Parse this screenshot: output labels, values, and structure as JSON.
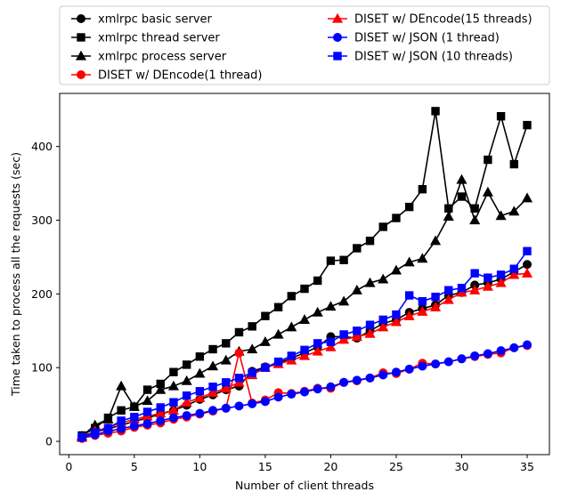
{
  "chart_data": {
    "type": "line",
    "title": "",
    "xlabel": "Number of client threads",
    "ylabel": "Time taken to process all the requests (sec)",
    "xlim": [
      -0.7,
      36.7
    ],
    "ylim": [
      -18,
      472
    ],
    "x_ticks": [
      0,
      5,
      10,
      15,
      20,
      25,
      30,
      35
    ],
    "y_ticks": [
      0,
      100,
      200,
      300,
      400
    ],
    "grid": false,
    "legend_position": "top (above plot), two columns",
    "x": [
      1,
      2,
      3,
      4,
      5,
      6,
      7,
      8,
      9,
      10,
      11,
      12,
      13,
      14,
      15,
      16,
      17,
      18,
      19,
      20,
      21,
      22,
      23,
      24,
      25,
      26,
      27,
      28,
      29,
      30,
      31,
      32,
      33,
      34,
      35
    ],
    "series": [
      {
        "name": "xmlrpc basic server",
        "color": "#000000",
        "marker": "circle",
        "values": [
          7,
          13,
          17,
          22,
          27,
          32,
          37,
          42,
          49,
          57,
          63,
          70,
          75,
          95,
          101,
          106,
          113,
          120,
          128,
          142,
          142,
          140,
          150,
          160,
          165,
          175,
          180,
          185,
          198,
          202,
          212,
          215,
          220,
          230,
          240
        ]
      },
      {
        "name": "xmlrpc thread server",
        "color": "#000000",
        "marker": "square",
        "values": [
          8,
          18,
          32,
          42,
          47,
          70,
          78,
          94,
          104,
          115,
          125,
          133,
          148,
          156,
          170,
          182,
          197,
          207,
          218,
          245,
          246,
          262,
          272,
          291,
          303,
          318,
          342,
          448,
          316,
          332,
          316,
          382,
          441,
          376,
          429
        ]
      },
      {
        "name": "xmlrpc process server",
        "color": "#000000",
        "marker": "triangle",
        "values": [
          7,
          22,
          30,
          75,
          47,
          55,
          70,
          75,
          82,
          92,
          102,
          110,
          122,
          125,
          135,
          145,
          155,
          165,
          175,
          183,
          190,
          205,
          215,
          220,
          232,
          243,
          248,
          272,
          305,
          355,
          300,
          338,
          306,
          312,
          330
        ]
      },
      {
        "name": "DISET w/ DEncode(1 thread)",
        "color": "#ff0000",
        "marker": "circle",
        "values": [
          4,
          8,
          11,
          14,
          19,
          22,
          25,
          30,
          33,
          37,
          41,
          45,
          120,
          52,
          56,
          66,
          65,
          68,
          72,
          72,
          80,
          82,
          86,
          93,
          92,
          98,
          106,
          105,
          108,
          112,
          115,
          118,
          120,
          127,
          130
        ]
      },
      {
        "name": "DISET w/ DEncode(15 threads)",
        "color": "#ff0000",
        "marker": "triangle",
        "values": [
          5,
          14,
          19,
          25,
          30,
          34,
          38,
          42,
          53,
          59,
          66,
          72,
          80,
          90,
          100,
          105,
          110,
          116,
          122,
          128,
          138,
          142,
          146,
          155,
          162,
          170,
          176,
          182,
          192,
          202,
          205,
          210,
          215,
          226,
          228
        ]
      },
      {
        "name": "DISET w/ JSON (1 thread)",
        "color": "#0000ff",
        "marker": "circle",
        "values": [
          5,
          9,
          14,
          17,
          21,
          24,
          28,
          32,
          35,
          38,
          42,
          45,
          48,
          51,
          54,
          60,
          64,
          67,
          71,
          74,
          80,
          83,
          86,
          90,
          94,
          98,
          102,
          105,
          108,
          112,
          116,
          119,
          123,
          127,
          131
        ]
      },
      {
        "name": "DISET w/ JSON (10 threads)",
        "color": "#0000ff",
        "marker": "square",
        "values": [
          6,
          12,
          18,
          28,
          33,
          40,
          46,
          53,
          62,
          68,
          74,
          80,
          86,
          93,
          100,
          108,
          116,
          124,
          133,
          135,
          145,
          150,
          158,
          165,
          172,
          198,
          190,
          196,
          205,
          208,
          228,
          222,
          226,
          234,
          258
        ]
      }
    ]
  }
}
